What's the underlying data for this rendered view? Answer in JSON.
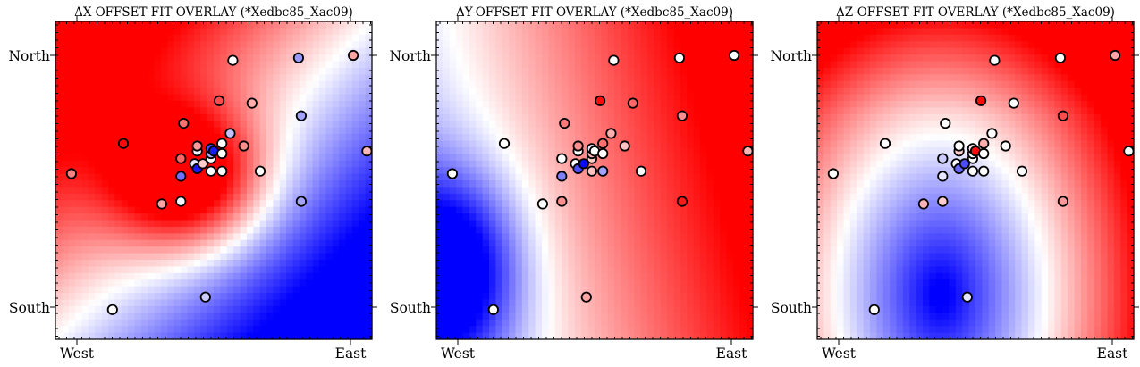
{
  "chart_data": [
    {
      "type": "scatter",
      "title": "ΔX-OFFSET FIT OVERLAY (*Xedbc85_Xac09)",
      "x_ticks": [
        "West",
        "East"
      ],
      "y_ticks": [
        "North",
        "South"
      ],
      "background": "diverging bwr field (red high / blue low)",
      "colormap": [
        "#0000ff",
        "#ffffff",
        "#ff0000"
      ],
      "field_kind": "x",
      "points": [
        {
          "x": -0.02,
          "y": 0.53,
          "c": 0.75
        },
        {
          "x": 0.17,
          "y": 0.65,
          "c": 0.98
        },
        {
          "x": 0.13,
          "y": -0.01,
          "c": 0.5
        },
        {
          "x": 0.31,
          "y": 0.41,
          "c": 0.68
        },
        {
          "x": 0.38,
          "y": 0.42,
          "c": 0.48
        },
        {
          "x": 0.38,
          "y": 0.52,
          "c": 0.22
        },
        {
          "x": 0.38,
          "y": 0.59,
          "c": 0.8
        },
        {
          "x": 0.39,
          "y": 0.73,
          "c": 0.78
        },
        {
          "x": 0.43,
          "y": 0.57,
          "c": 0.45
        },
        {
          "x": 0.44,
          "y": 0.62,
          "c": 0.48
        },
        {
          "x": 0.44,
          "y": 0.55,
          "c": 0.05
        },
        {
          "x": 0.44,
          "y": 0.64,
          "c": 0.7
        },
        {
          "x": 0.46,
          "y": 0.57,
          "c": 0.6
        },
        {
          "x": 0.47,
          "y": 0.04,
          "c": 0.4
        },
        {
          "x": 0.49,
          "y": 0.59,
          "c": 0.5
        },
        {
          "x": 0.49,
          "y": 0.61,
          "c": 0.35
        },
        {
          "x": 0.49,
          "y": 0.63,
          "c": 0.15
        },
        {
          "x": 0.49,
          "y": 0.54,
          "c": 0.5
        },
        {
          "x": 0.5,
          "y": 0.62,
          "c": 0.05
        },
        {
          "x": 0.52,
          "y": 0.82,
          "c": 0.85
        },
        {
          "x": 0.53,
          "y": 0.65,
          "c": 0.5
        },
        {
          "x": 0.53,
          "y": 0.61,
          "c": 0.5
        },
        {
          "x": 0.53,
          "y": 0.54,
          "c": 0.5
        },
        {
          "x": 0.56,
          "y": 0.69,
          "c": 0.38
        },
        {
          "x": 0.57,
          "y": 0.98,
          "c": 0.5
        },
        {
          "x": 0.61,
          "y": 0.64,
          "c": 0.72
        },
        {
          "x": 0.64,
          "y": 0.81,
          "c": 0.66
        },
        {
          "x": 0.67,
          "y": 0.54,
          "c": 0.5
        },
        {
          "x": 0.81,
          "y": 0.99,
          "c": 0.3
        },
        {
          "x": 0.82,
          "y": 0.76,
          "c": 0.32
        },
        {
          "x": 0.82,
          "y": 0.42,
          "c": 0.32
        },
        {
          "x": 1.01,
          "y": 1.0,
          "c": 0.68
        },
        {
          "x": 1.06,
          "y": 0.62,
          "c": 0.64
        }
      ]
    },
    {
      "type": "scatter",
      "title": "ΔY-OFFSET FIT OVERLAY (*Xedbc85_Xac09)",
      "x_ticks": [
        "West",
        "East"
      ],
      "y_ticks": [
        "North",
        "South"
      ],
      "background": "diverging bwr field (red high / blue low)",
      "colormap": [
        "#0000ff",
        "#ffffff",
        "#ff0000"
      ],
      "field_kind": "y",
      "points": [
        {
          "x": -0.02,
          "y": 0.53,
          "c": 0.5
        },
        {
          "x": 0.17,
          "y": 0.65,
          "c": 0.5
        },
        {
          "x": 0.13,
          "y": -0.01,
          "c": 0.5
        },
        {
          "x": 0.31,
          "y": 0.41,
          "c": 0.5
        },
        {
          "x": 0.38,
          "y": 0.42,
          "c": 0.72
        },
        {
          "x": 0.38,
          "y": 0.52,
          "c": 0.25
        },
        {
          "x": 0.38,
          "y": 0.59,
          "c": 0.5
        },
        {
          "x": 0.39,
          "y": 0.73,
          "c": 0.76
        },
        {
          "x": 0.43,
          "y": 0.57,
          "c": 0.5
        },
        {
          "x": 0.44,
          "y": 0.62,
          "c": 0.5
        },
        {
          "x": 0.44,
          "y": 0.55,
          "c": 0.15
        },
        {
          "x": 0.44,
          "y": 0.64,
          "c": 0.72
        },
        {
          "x": 0.46,
          "y": 0.57,
          "c": 0.02
        },
        {
          "x": 0.47,
          "y": 0.04,
          "c": 0.68
        },
        {
          "x": 0.49,
          "y": 0.59,
          "c": 0.6
        },
        {
          "x": 0.49,
          "y": 0.61,
          "c": 0.65
        },
        {
          "x": 0.49,
          "y": 0.63,
          "c": 0.45
        },
        {
          "x": 0.49,
          "y": 0.54,
          "c": 0.62
        },
        {
          "x": 0.5,
          "y": 0.62,
          "c": 0.5
        },
        {
          "x": 0.52,
          "y": 0.82,
          "c": 0.98
        },
        {
          "x": 0.53,
          "y": 0.65,
          "c": 0.78
        },
        {
          "x": 0.53,
          "y": 0.61,
          "c": 0.5
        },
        {
          "x": 0.53,
          "y": 0.54,
          "c": 0.32
        },
        {
          "x": 0.56,
          "y": 0.69,
          "c": 0.66
        },
        {
          "x": 0.57,
          "y": 0.98,
          "c": 0.5
        },
        {
          "x": 0.61,
          "y": 0.64,
          "c": 0.62
        },
        {
          "x": 0.64,
          "y": 0.81,
          "c": 0.8
        },
        {
          "x": 0.67,
          "y": 0.54,
          "c": 0.5
        },
        {
          "x": 0.81,
          "y": 0.99,
          "c": 0.5
        },
        {
          "x": 0.82,
          "y": 0.76,
          "c": 0.72
        },
        {
          "x": 0.82,
          "y": 0.42,
          "c": 0.95
        },
        {
          "x": 1.01,
          "y": 1.0,
          "c": 0.5
        },
        {
          "x": 1.06,
          "y": 0.62,
          "c": 0.65
        }
      ]
    },
    {
      "type": "scatter",
      "title": "ΔZ-OFFSET FIT OVERLAY (*Xedbc85_Xac09)",
      "x_ticks": [
        "West",
        "East"
      ],
      "y_ticks": [
        "North",
        "South"
      ],
      "background": "diverging bwr field (red high / blue low)",
      "colormap": [
        "#0000ff",
        "#ffffff",
        "#ff0000"
      ],
      "field_kind": "z",
      "points": [
        {
          "x": -0.02,
          "y": 0.53,
          "c": 0.5
        },
        {
          "x": 0.17,
          "y": 0.65,
          "c": 0.5
        },
        {
          "x": 0.13,
          "y": -0.01,
          "c": 0.5
        },
        {
          "x": 0.31,
          "y": 0.41,
          "c": 0.65
        },
        {
          "x": 0.38,
          "y": 0.42,
          "c": 0.6
        },
        {
          "x": 0.38,
          "y": 0.52,
          "c": 0.45
        },
        {
          "x": 0.38,
          "y": 0.59,
          "c": 0.4
        },
        {
          "x": 0.39,
          "y": 0.73,
          "c": 0.5
        },
        {
          "x": 0.43,
          "y": 0.57,
          "c": 0.5
        },
        {
          "x": 0.44,
          "y": 0.62,
          "c": 0.6
        },
        {
          "x": 0.44,
          "y": 0.55,
          "c": 0.2
        },
        {
          "x": 0.44,
          "y": 0.64,
          "c": 0.5
        },
        {
          "x": 0.46,
          "y": 0.57,
          "c": 0.15
        },
        {
          "x": 0.47,
          "y": 0.04,
          "c": 0.45
        },
        {
          "x": 0.49,
          "y": 0.59,
          "c": 0.5
        },
        {
          "x": 0.49,
          "y": 0.61,
          "c": 0.5
        },
        {
          "x": 0.49,
          "y": 0.63,
          "c": 0.55
        },
        {
          "x": 0.49,
          "y": 0.54,
          "c": 0.5
        },
        {
          "x": 0.5,
          "y": 0.62,
          "c": 0.98
        },
        {
          "x": 0.52,
          "y": 0.82,
          "c": 0.98
        },
        {
          "x": 0.53,
          "y": 0.65,
          "c": 0.66
        },
        {
          "x": 0.53,
          "y": 0.61,
          "c": 0.5
        },
        {
          "x": 0.53,
          "y": 0.54,
          "c": 0.5
        },
        {
          "x": 0.56,
          "y": 0.69,
          "c": 0.5
        },
        {
          "x": 0.57,
          "y": 0.98,
          "c": 0.5
        },
        {
          "x": 0.61,
          "y": 0.64,
          "c": 0.5
        },
        {
          "x": 0.64,
          "y": 0.81,
          "c": 0.5
        },
        {
          "x": 0.67,
          "y": 0.54,
          "c": 0.5
        },
        {
          "x": 0.81,
          "y": 0.99,
          "c": 0.5
        },
        {
          "x": 0.82,
          "y": 0.76,
          "c": 0.85
        },
        {
          "x": 0.82,
          "y": 0.42,
          "c": 0.7
        },
        {
          "x": 1.01,
          "y": 1.0,
          "c": 0.68
        },
        {
          "x": 1.06,
          "y": 0.62,
          "c": 0.5
        }
      ]
    }
  ]
}
